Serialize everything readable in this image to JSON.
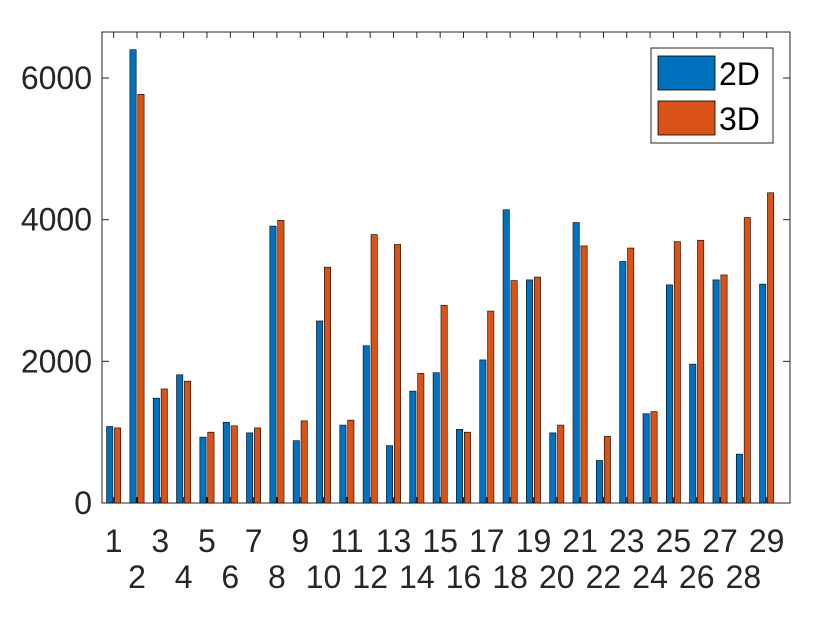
{
  "chart_data": {
    "type": "bar",
    "categories": [
      "1",
      "2",
      "3",
      "4",
      "5",
      "6",
      "7",
      "8",
      "9",
      "10",
      "11",
      "12",
      "13",
      "14",
      "15",
      "16",
      "17",
      "18",
      "19",
      "20",
      "21",
      "22",
      "23",
      "24",
      "25",
      "26",
      "27",
      "28",
      "29"
    ],
    "series": [
      {
        "name": "2D",
        "color": "#0072BD",
        "values": [
          1080,
          6400,
          1480,
          1810,
          930,
          1140,
          990,
          3910,
          880,
          2570,
          1100,
          2220,
          810,
          1580,
          1840,
          1040,
          2020,
          4140,
          3150,
          990,
          3960,
          600,
          3410,
          1260,
          3080,
          1960,
          3150,
          690,
          3090
        ]
      },
      {
        "name": "3D",
        "color": "#D95319",
        "values": [
          1060,
          5770,
          1610,
          1720,
          1000,
          1090,
          1060,
          3990,
          1160,
          3330,
          1170,
          3790,
          3650,
          1830,
          2790,
          1000,
          2710,
          3140,
          3190,
          1100,
          3630,
          940,
          3600,
          1290,
          3690,
          3710,
          3220,
          4030,
          4380
        ]
      }
    ],
    "y_ticks": [
      0,
      2000,
      4000,
      6000
    ],
    "ylim": [
      0,
      6650
    ],
    "legend_position": "top-right",
    "grid": false
  }
}
